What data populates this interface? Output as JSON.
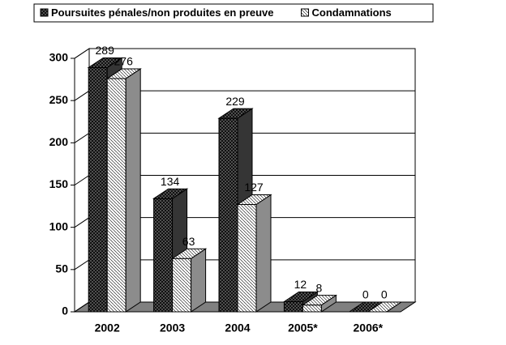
{
  "chart_data": {
    "type": "bar3d",
    "categories": [
      "2002",
      "2003",
      "2004",
      "2005*",
      "2006*"
    ],
    "series": [
      {
        "name": "Poursuites pénales/non produites en preuve",
        "color": "#606060",
        "values": [
          289,
          134,
          229,
          12,
          0
        ]
      },
      {
        "name": "Condamnations",
        "color": "#ffffff",
        "values": [
          276,
          63,
          127,
          8,
          0
        ]
      }
    ],
    "ylim": [
      0,
      300
    ],
    "yticks": [
      0,
      50,
      100,
      150,
      200,
      250,
      300
    ],
    "grid": true
  }
}
